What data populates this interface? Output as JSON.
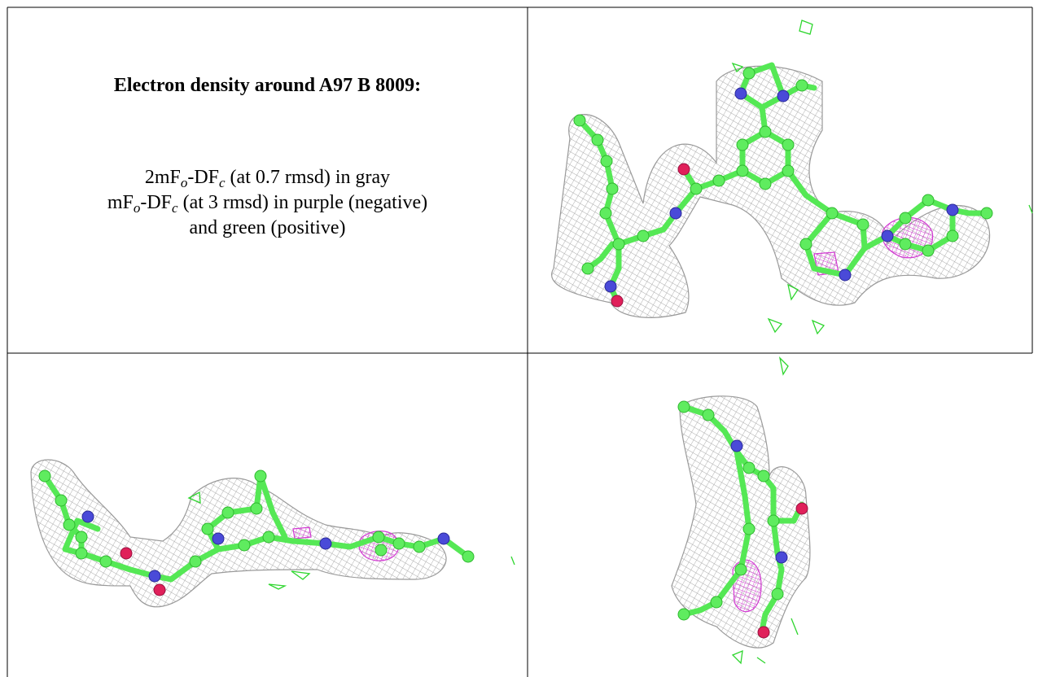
{
  "title": "Electron density around A97 B 8009:",
  "lines": [
    [
      "2mF",
      "o",
      "-DF",
      "c",
      " (at 0.7 rmsd) in gray"
    ],
    [
      "mF",
      "o",
      "-DF",
      "c",
      " (at 3 rmsd) in purple (negative)"
    ],
    [
      "and green (positive)"
    ]
  ]
}
